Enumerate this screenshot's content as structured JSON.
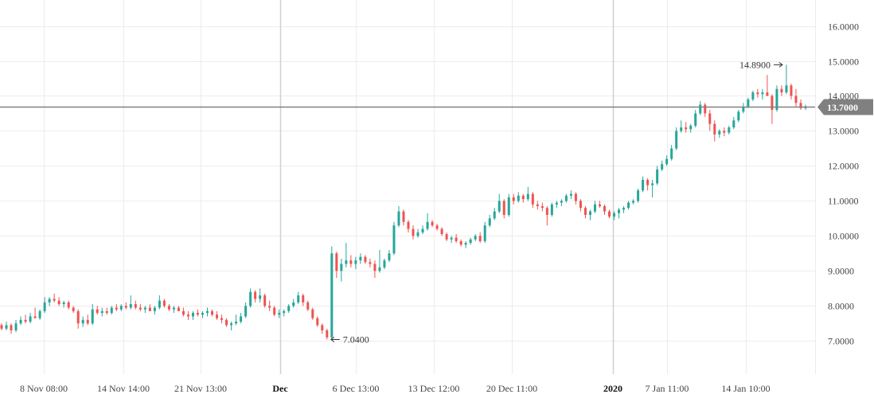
{
  "chart_data": {
    "type": "candlestick",
    "title": "",
    "xlabel": "",
    "ylabel": "",
    "ylim": [
      6.05,
      16.65
    ],
    "y_ticks": [
      "7.0000",
      "8.0000",
      "9.0000",
      "10.0000",
      "11.0000",
      "12.0000",
      "13.0000",
      "14.0000",
      "15.0000",
      "16.0000"
    ],
    "x_ticks": [
      "8 Nov 08:00",
      "14 Nov 14:00",
      "21 Nov 13:00",
      "Dec",
      "6 Dec 13:00",
      "13 Dec 12:00",
      "20 Dec 11:00",
      "2020",
      "7 Jan 11:00",
      "14 Jan 10:00"
    ],
    "x_ticks_bold": [
      "Dec",
      "2020"
    ],
    "current_price": 13.7,
    "current_price_label": "13.7000",
    "max_label": "14.8900",
    "min_label": "7.0400",
    "grid": true,
    "colors": {
      "up": "#26a69a",
      "down": "#ef5350",
      "grid": "#ececec",
      "month_line": "#d0d0d0",
      "price_line": "#808080",
      "price_tag": "#808080",
      "axis_text": "#444444"
    },
    "ohlc": [
      [
        7.45,
        7.5,
        7.3,
        7.35
      ],
      [
        7.35,
        7.55,
        7.3,
        7.45
      ],
      [
        7.45,
        7.5,
        7.2,
        7.3
      ],
      [
        7.3,
        7.6,
        7.25,
        7.5
      ],
      [
        7.5,
        7.7,
        7.45,
        7.6
      ],
      [
        7.6,
        7.75,
        7.5,
        7.55
      ],
      [
        7.55,
        7.8,
        7.5,
        7.7
      ],
      [
        7.7,
        7.95,
        7.65,
        7.65
      ],
      [
        7.65,
        7.9,
        7.6,
        7.85
      ],
      [
        7.85,
        8.25,
        7.8,
        8.1
      ],
      [
        8.1,
        8.25,
        8.0,
        8.2
      ],
      [
        8.2,
        8.35,
        8.1,
        8.15
      ],
      [
        8.15,
        8.25,
        8.0,
        8.05
      ],
      [
        8.05,
        8.15,
        7.95,
        8.1
      ],
      [
        8.1,
        8.15,
        7.9,
        7.95
      ],
      [
        7.95,
        8.0,
        7.8,
        7.85
      ],
      [
        7.85,
        7.9,
        7.35,
        7.5
      ],
      [
        7.5,
        7.7,
        7.4,
        7.6
      ],
      [
        7.6,
        7.75,
        7.45,
        7.5
      ],
      [
        7.5,
        8.05,
        7.45,
        7.9
      ],
      [
        7.9,
        8.0,
        7.75,
        7.8
      ],
      [
        7.8,
        7.95,
        7.7,
        7.85
      ],
      [
        7.85,
        7.95,
        7.75,
        7.8
      ],
      [
        7.8,
        8.0,
        7.75,
        7.95
      ],
      [
        7.95,
        8.05,
        7.85,
        7.9
      ],
      [
        7.9,
        8.05,
        7.85,
        8.0
      ],
      [
        8.0,
        8.1,
        7.9,
        7.95
      ],
      [
        7.95,
        8.3,
        7.9,
        8.05
      ],
      [
        8.05,
        8.15,
        7.9,
        7.95
      ],
      [
        7.95,
        8.05,
        7.85,
        7.9
      ],
      [
        7.9,
        8.0,
        7.8,
        7.95
      ],
      [
        7.95,
        8.05,
        7.85,
        7.85
      ],
      [
        7.85,
        8.0,
        7.75,
        7.95
      ],
      [
        7.95,
        8.3,
        7.9,
        8.15
      ],
      [
        8.15,
        8.2,
        7.95,
        8.0
      ],
      [
        8.0,
        8.05,
        7.85,
        7.9
      ],
      [
        7.9,
        8.0,
        7.8,
        7.95
      ],
      [
        7.95,
        8.0,
        7.85,
        7.85
      ],
      [
        7.85,
        7.95,
        7.7,
        7.75
      ],
      [
        7.75,
        7.85,
        7.6,
        7.7
      ],
      [
        7.7,
        7.85,
        7.6,
        7.8
      ],
      [
        7.8,
        7.9,
        7.7,
        7.75
      ],
      [
        7.75,
        7.85,
        7.65,
        7.8
      ],
      [
        7.8,
        7.95,
        7.7,
        7.85
      ],
      [
        7.85,
        7.9,
        7.7,
        7.75
      ],
      [
        7.75,
        7.85,
        7.6,
        7.65
      ],
      [
        7.65,
        7.75,
        7.5,
        7.6
      ],
      [
        7.6,
        7.65,
        7.4,
        7.45
      ],
      [
        7.45,
        7.55,
        7.3,
        7.5
      ],
      [
        7.5,
        7.75,
        7.45,
        7.55
      ],
      [
        7.55,
        7.8,
        7.5,
        7.7
      ],
      [
        7.7,
        8.1,
        7.65,
        8.0
      ],
      [
        8.0,
        8.5,
        7.95,
        8.4
      ],
      [
        8.4,
        8.45,
        8.1,
        8.2
      ],
      [
        8.2,
        8.5,
        8.1,
        8.3
      ],
      [
        8.3,
        8.35,
        7.95,
        8.0
      ],
      [
        8.0,
        8.15,
        7.85,
        7.95
      ],
      [
        7.95,
        8.0,
        7.7,
        7.75
      ],
      [
        7.75,
        7.9,
        7.65,
        7.8
      ],
      [
        7.8,
        7.9,
        7.7,
        7.85
      ],
      [
        7.85,
        8.05,
        7.8,
        8.0
      ],
      [
        8.0,
        8.2,
        7.95,
        8.1
      ],
      [
        8.1,
        8.4,
        8.05,
        8.3
      ],
      [
        8.3,
        8.35,
        8.0,
        8.1
      ],
      [
        8.1,
        8.15,
        7.85,
        7.9
      ],
      [
        7.9,
        7.95,
        7.6,
        7.65
      ],
      [
        7.65,
        7.7,
        7.4,
        7.45
      ],
      [
        7.45,
        7.5,
        7.2,
        7.3
      ],
      [
        7.3,
        7.35,
        7.04,
        7.1
      ],
      [
        7.1,
        9.7,
        7.05,
        9.5
      ],
      [
        9.5,
        9.55,
        8.8,
        9.0
      ],
      [
        9.0,
        9.35,
        8.7,
        9.2
      ],
      [
        9.2,
        9.8,
        9.1,
        9.3
      ],
      [
        9.3,
        9.45,
        9.1,
        9.2
      ],
      [
        9.2,
        9.4,
        9.05,
        9.3
      ],
      [
        9.3,
        9.5,
        9.2,
        9.4
      ],
      [
        9.4,
        9.45,
        9.2,
        9.25
      ],
      [
        9.25,
        9.35,
        9.1,
        9.2
      ],
      [
        9.2,
        9.3,
        8.8,
        9.0
      ],
      [
        9.0,
        9.6,
        8.95,
        9.1
      ],
      [
        9.1,
        9.35,
        9.05,
        9.3
      ],
      [
        9.3,
        9.6,
        9.25,
        9.5
      ],
      [
        9.5,
        10.4,
        9.45,
        10.3
      ],
      [
        10.3,
        10.85,
        10.25,
        10.7
      ],
      [
        10.7,
        10.75,
        10.3,
        10.4
      ],
      [
        10.4,
        10.45,
        10.1,
        10.2
      ],
      [
        10.2,
        10.3,
        9.9,
        10.0
      ],
      [
        10.0,
        10.2,
        9.95,
        10.1
      ],
      [
        10.1,
        10.3,
        10.05,
        10.2
      ],
      [
        10.2,
        10.65,
        10.15,
        10.4
      ],
      [
        10.4,
        10.45,
        10.25,
        10.3
      ],
      [
        10.3,
        10.35,
        10.15,
        10.2
      ],
      [
        10.2,
        10.25,
        10.0,
        10.05
      ],
      [
        10.05,
        10.1,
        9.85,
        9.9
      ],
      [
        9.9,
        10.0,
        9.8,
        9.95
      ],
      [
        9.95,
        10.05,
        9.8,
        9.85
      ],
      [
        9.85,
        9.9,
        9.7,
        9.75
      ],
      [
        9.75,
        9.85,
        9.65,
        9.8
      ],
      [
        9.8,
        9.95,
        9.75,
        9.9
      ],
      [
        9.9,
        10.05,
        9.85,
        10.0
      ],
      [
        10.0,
        10.1,
        9.8,
        9.85
      ],
      [
        9.85,
        10.4,
        9.8,
        10.3
      ],
      [
        10.3,
        10.6,
        10.25,
        10.5
      ],
      [
        10.5,
        10.8,
        10.45,
        10.7
      ],
      [
        10.7,
        11.2,
        10.65,
        11.0
      ],
      [
        11.0,
        11.05,
        10.5,
        10.6
      ],
      [
        10.6,
        11.2,
        10.55,
        11.1
      ],
      [
        11.1,
        11.2,
        10.9,
        11.0
      ],
      [
        11.0,
        11.25,
        10.95,
        11.15
      ],
      [
        11.15,
        11.2,
        10.95,
        11.05
      ],
      [
        11.05,
        11.4,
        11.0,
        11.2
      ],
      [
        11.2,
        11.25,
        10.8,
        10.9
      ],
      [
        10.9,
        11.0,
        10.75,
        10.85
      ],
      [
        10.85,
        10.95,
        10.7,
        10.8
      ],
      [
        10.8,
        10.85,
        10.3,
        10.6
      ],
      [
        10.6,
        10.95,
        10.55,
        10.9
      ],
      [
        10.9,
        11.0,
        10.8,
        10.95
      ],
      [
        10.95,
        11.05,
        10.85,
        11.0
      ],
      [
        11.0,
        11.2,
        10.95,
        11.15
      ],
      [
        11.15,
        11.3,
        11.05,
        11.2
      ],
      [
        11.2,
        11.25,
        10.9,
        11.0
      ],
      [
        11.0,
        11.05,
        10.7,
        10.8
      ],
      [
        10.8,
        10.85,
        10.5,
        10.6
      ],
      [
        10.6,
        10.75,
        10.45,
        10.7
      ],
      [
        10.7,
        11.0,
        10.65,
        10.9
      ],
      [
        10.9,
        11.0,
        10.8,
        10.85
      ],
      [
        10.85,
        10.9,
        10.6,
        10.7
      ],
      [
        10.7,
        10.75,
        10.5,
        10.55
      ],
      [
        10.55,
        10.7,
        10.45,
        10.65
      ],
      [
        10.65,
        10.8,
        10.5,
        10.75
      ],
      [
        10.75,
        10.85,
        10.65,
        10.8
      ],
      [
        10.8,
        11.0,
        10.75,
        10.95
      ],
      [
        10.95,
        11.05,
        10.9,
        11.0
      ],
      [
        11.0,
        11.35,
        10.95,
        11.3
      ],
      [
        11.3,
        11.7,
        11.25,
        11.6
      ],
      [
        11.6,
        11.65,
        11.3,
        11.45
      ],
      [
        11.45,
        11.6,
        11.1,
        11.5
      ],
      [
        11.5,
        12.0,
        11.45,
        11.9
      ],
      [
        11.9,
        12.15,
        11.85,
        12.05
      ],
      [
        12.05,
        12.3,
        12.0,
        12.2
      ],
      [
        12.2,
        12.6,
        12.15,
        12.5
      ],
      [
        12.5,
        13.1,
        12.45,
        13.0
      ],
      [
        13.0,
        13.3,
        12.95,
        13.1
      ],
      [
        13.1,
        13.25,
        12.95,
        13.05
      ],
      [
        13.05,
        13.2,
        12.95,
        13.15
      ],
      [
        13.15,
        13.6,
        13.1,
        13.5
      ],
      [
        13.5,
        13.85,
        13.45,
        13.75
      ],
      [
        13.75,
        13.8,
        13.4,
        13.5
      ],
      [
        13.5,
        13.6,
        13.0,
        13.2
      ],
      [
        13.2,
        13.3,
        12.7,
        12.9
      ],
      [
        12.9,
        13.05,
        12.8,
        13.0
      ],
      [
        13.0,
        13.1,
        12.85,
        12.95
      ],
      [
        12.95,
        13.15,
        12.9,
        13.1
      ],
      [
        13.1,
        13.4,
        13.05,
        13.3
      ],
      [
        13.3,
        13.6,
        13.25,
        13.55
      ],
      [
        13.55,
        13.8,
        13.5,
        13.7
      ],
      [
        13.7,
        13.95,
        13.65,
        13.9
      ],
      [
        13.9,
        14.15,
        13.85,
        14.1
      ],
      [
        14.1,
        14.2,
        13.95,
        14.05
      ],
      [
        14.05,
        14.2,
        13.9,
        14.1
      ],
      [
        14.1,
        14.6,
        14.05,
        14.0
      ],
      [
        14.0,
        14.05,
        13.2,
        13.6
      ],
      [
        13.6,
        14.3,
        13.55,
        14.2
      ],
      [
        14.2,
        14.3,
        14.0,
        14.1
      ],
      [
        14.1,
        14.89,
        14.05,
        14.3
      ],
      [
        14.3,
        14.35,
        13.9,
        14.0
      ],
      [
        14.0,
        14.2,
        13.7,
        13.8
      ],
      [
        13.8,
        13.9,
        13.6,
        13.65
      ],
      [
        13.65,
        13.75,
        13.6,
        13.7
      ]
    ]
  }
}
